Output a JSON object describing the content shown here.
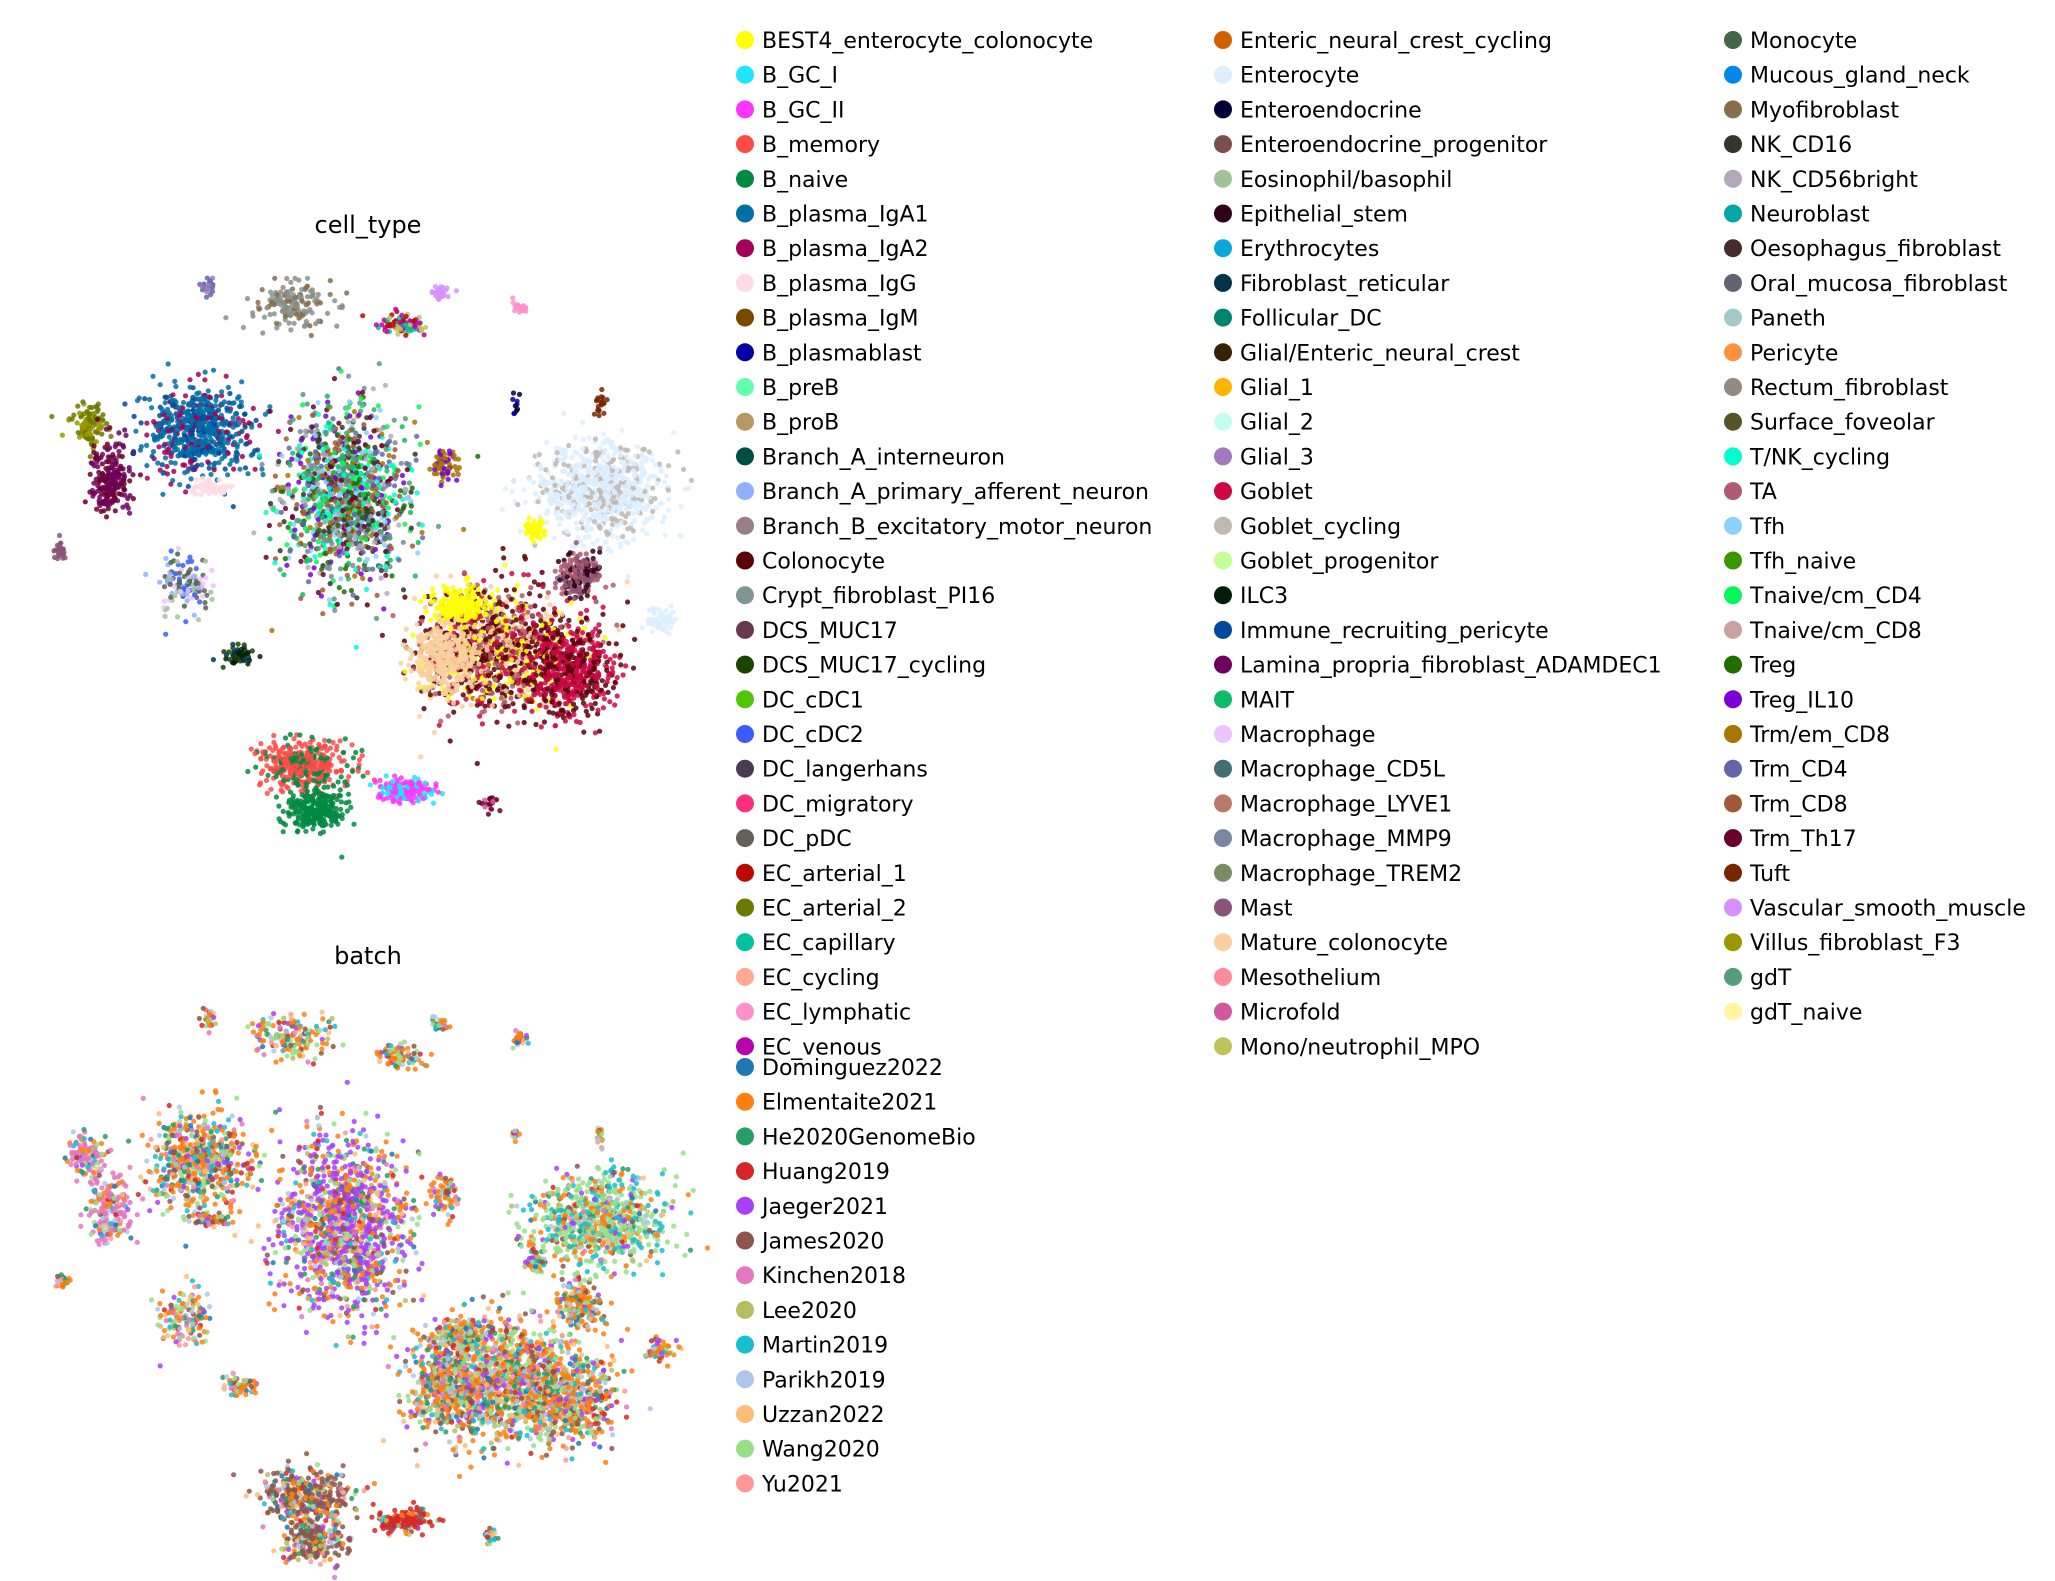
{
  "chart_data": [
    {
      "type": "scatter",
      "title": "cell_type",
      "xlabel": "",
      "ylabel": "",
      "grid": false,
      "axes_visible": false,
      "legend_placement": "right",
      "legend_entries": [
        {
          "label": "BEST4_enterocyte_colonocyte",
          "color": "#ffff00"
        },
        {
          "label": "B_GC_I",
          "color": "#1ce6ff"
        },
        {
          "label": "B_GC_II",
          "color": "#ff34ff"
        },
        {
          "label": "B_memory",
          "color": "#ff4a46"
        },
        {
          "label": "B_naive",
          "color": "#008941"
        },
        {
          "label": "B_plasma_IgA1",
          "color": "#006fa6"
        },
        {
          "label": "B_plasma_IgA2",
          "color": "#a30059"
        },
        {
          "label": "B_plasma_IgG",
          "color": "#ffdbe5"
        },
        {
          "label": "B_plasma_IgM",
          "color": "#7a4900"
        },
        {
          "label": "B_plasmablast",
          "color": "#0000a6"
        },
        {
          "label": "B_preB",
          "color": "#63ffac"
        },
        {
          "label": "B_proB",
          "color": "#b79762"
        },
        {
          "label": "Branch_A_interneuron",
          "color": "#004d43"
        },
        {
          "label": "Branch_A_primary_afferent_neuron",
          "color": "#8fb0ff"
        },
        {
          "label": "Branch_B_excitatory_motor_neuron",
          "color": "#997d87"
        },
        {
          "label": "Colonocyte",
          "color": "#5a0007"
        },
        {
          "label": "Crypt_fibroblast_PI16",
          "color": "#809693"
        },
        {
          "label": "DCS_MUC17",
          "color": "#6a3a4c"
        },
        {
          "label": "DCS_MUC17_cycling",
          "color": "#1b4400"
        },
        {
          "label": "DC_cDC1",
          "color": "#4fc601"
        },
        {
          "label": "DC_cDC2",
          "color": "#3b5dff"
        },
        {
          "label": "DC_langerhans",
          "color": "#4a3b53"
        },
        {
          "label": "DC_migratory",
          "color": "#ff2f80"
        },
        {
          "label": "DC_pDC",
          "color": "#61615a"
        },
        {
          "label": "EC_arterial_1",
          "color": "#ba0900"
        },
        {
          "label": "EC_arterial_2",
          "color": "#6b7900"
        },
        {
          "label": "EC_capillary",
          "color": "#00c2a0"
        },
        {
          "label": "EC_cycling",
          "color": "#ffaa92"
        },
        {
          "label": "EC_lymphatic",
          "color": "#ff90c9"
        },
        {
          "label": "EC_venous",
          "color": "#b903aa"
        },
        {
          "label": "Enteric_neural_crest_cycling",
          "color": "#d16100"
        },
        {
          "label": "Enterocyte",
          "color": "#ddefff"
        },
        {
          "label": "Enteroendocrine",
          "color": "#000035"
        },
        {
          "label": "Enteroendocrine_progenitor",
          "color": "#7b4f4b"
        },
        {
          "label": "Eosinophil/basophil",
          "color": "#a1c299"
        },
        {
          "label": "Epithelial_stem",
          "color": "#300018"
        },
        {
          "label": "Erythrocytes",
          "color": "#0aa6d8"
        },
        {
          "label": "Fibroblast_reticular",
          "color": "#013349"
        },
        {
          "label": "Follicular_DC",
          "color": "#00846f"
        },
        {
          "label": "Glial/Enteric_neural_crest",
          "color": "#372101"
        },
        {
          "label": "Glial_1",
          "color": "#ffb500"
        },
        {
          "label": "Glial_2",
          "color": "#c2ffed"
        },
        {
          "label": "Glial_3",
          "color": "#a079bf"
        },
        {
          "label": "Goblet",
          "color": "#cc0744"
        },
        {
          "label": "Goblet_cycling",
          "color": "#c0b9b2"
        },
        {
          "label": "Goblet_progenitor",
          "color": "#c2ff99"
        },
        {
          "label": "ILC3",
          "color": "#001e09"
        },
        {
          "label": "Immune_recruiting_pericyte",
          "color": "#00489c"
        },
        {
          "label": "Lamina_propria_fibroblast_ADAMDEC1",
          "color": "#6f0062"
        },
        {
          "label": "MAIT",
          "color": "#0cbd66"
        },
        {
          "label": "Macrophage",
          "color": "#eec3ff"
        },
        {
          "label": "Macrophage_CD5L",
          "color": "#456d75"
        },
        {
          "label": "Macrophage_LYVE1",
          "color": "#b77b68"
        },
        {
          "label": "Macrophage_MMP9",
          "color": "#7a87a1"
        },
        {
          "label": "Macrophage_TREM2",
          "color": "#788d66"
        },
        {
          "label": "Mast",
          "color": "#885578"
        },
        {
          "label": "Mature_colonocyte",
          "color": "#fad09f"
        },
        {
          "label": "Mesothelium",
          "color": "#ff8a9a"
        },
        {
          "label": "Microfold",
          "color": "#d157a0"
        },
        {
          "label": "Mono/neutrophil_MPO",
          "color": "#bec459"
        },
        {
          "label": "Monocyte",
          "color": "#456648"
        },
        {
          "label": "Mucous_gland_neck",
          "color": "#0086ed"
        },
        {
          "label": "Myofibroblast",
          "color": "#886f4c"
        },
        {
          "label": "NK_CD16",
          "color": "#34362d"
        },
        {
          "label": "NK_CD56bright",
          "color": "#b4a8bd"
        },
        {
          "label": "Neuroblast",
          "color": "#00a6aa"
        },
        {
          "label": "Oesophagus_fibroblast",
          "color": "#452c2c"
        },
        {
          "label": "Oral_mucosa_fibroblast",
          "color": "#636375"
        },
        {
          "label": "Paneth",
          "color": "#a3c8c9"
        },
        {
          "label": "Pericyte",
          "color": "#ff913f"
        },
        {
          "label": "Rectum_fibroblast",
          "color": "#938a81"
        },
        {
          "label": "Surface_foveolar",
          "color": "#575329"
        },
        {
          "label": "T/NK_cycling",
          "color": "#00fecf"
        },
        {
          "label": "TA",
          "color": "#b05b6f"
        },
        {
          "label": "Tfh",
          "color": "#8cd0ff"
        },
        {
          "label": "Tfh_naive",
          "color": "#3b9700"
        },
        {
          "label": "Tnaive/cm_CD4",
          "color": "#04f757"
        },
        {
          "label": "Tnaive/cm_CD8",
          "color": "#c8a1a1"
        },
        {
          "label": "Treg",
          "color": "#1e6e00"
        },
        {
          "label": "Treg_IL10",
          "color": "#7900d7"
        },
        {
          "label": "Trm/em_CD8",
          "color": "#a77500"
        },
        {
          "label": "Trm_CD4",
          "color": "#6367a9"
        },
        {
          "label": "Trm_CD8",
          "color": "#a05837"
        },
        {
          "label": "Trm_Th17",
          "color": "#6b002c"
        },
        {
          "label": "Tuft",
          "color": "#772600"
        },
        {
          "label": "Vascular_smooth_muscle",
          "color": "#d790ff"
        },
        {
          "label": "Villus_fibroblast_F3",
          "color": "#9b9700"
        },
        {
          "label": "gdT",
          "color": "#549e79"
        },
        {
          "label": "gdT_naive",
          "color": "#fff69f"
        }
      ]
    },
    {
      "type": "scatter",
      "title": "batch",
      "xlabel": "",
      "ylabel": "",
      "grid": false,
      "axes_visible": false,
      "legend_placement": "right",
      "legend_entries": [
        {
          "label": "Dominguez2022",
          "color": "#1f77b4"
        },
        {
          "label": "Elmentaite2021",
          "color": "#ff7f0e"
        },
        {
          "label": "He2020GenomeBio",
          "color": "#279e68"
        },
        {
          "label": "Huang2019",
          "color": "#d62728"
        },
        {
          "label": "Jaeger2021",
          "color": "#aa40fc"
        },
        {
          "label": "James2020",
          "color": "#8c564b"
        },
        {
          "label": "Kinchen2018",
          "color": "#e377c2"
        },
        {
          "label": "Lee2020",
          "color": "#b5bd61"
        },
        {
          "label": "Martin2019",
          "color": "#17becf"
        },
        {
          "label": "Parikh2019",
          "color": "#aec7e8"
        },
        {
          "label": "Uzzan2022",
          "color": "#ffbb78"
        },
        {
          "label": "Wang2020",
          "color": "#98df8a"
        },
        {
          "label": "Yu2021",
          "color": "#ff9896"
        }
      ]
    }
  ]
}
